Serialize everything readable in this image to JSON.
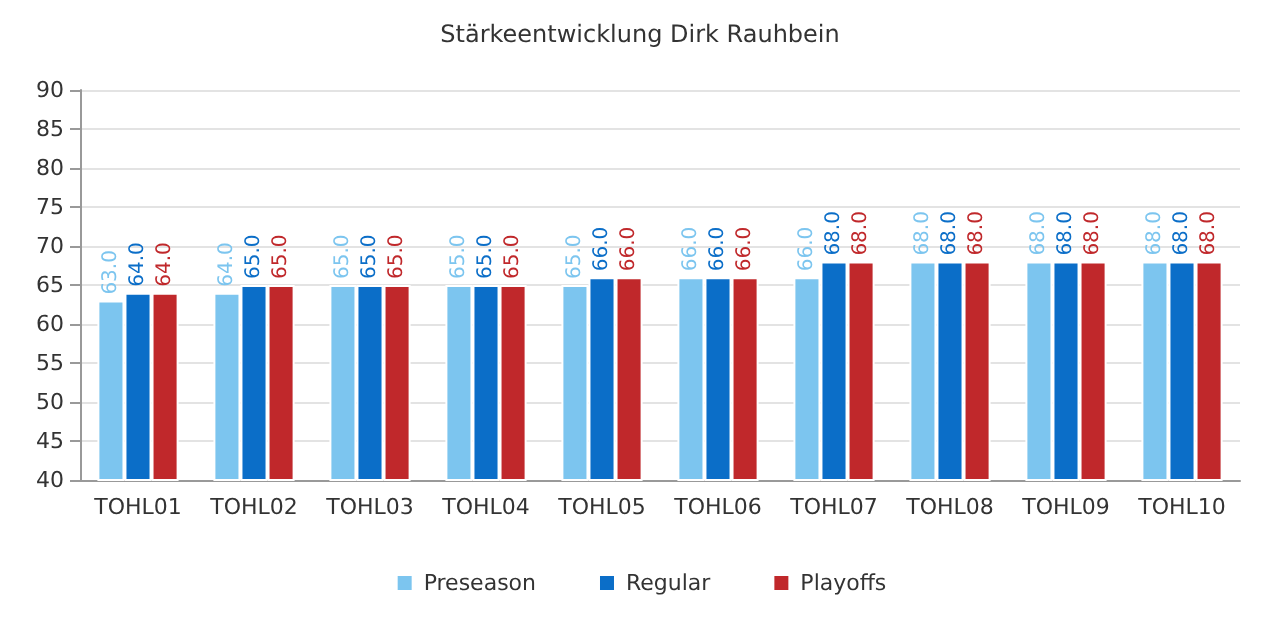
{
  "chart_data": {
    "type": "bar",
    "title": "Stärkeentwicklung Dirk Rauhbein",
    "categories": [
      "TOHL01",
      "TOHL02",
      "TOHL03",
      "TOHL04",
      "TOHL05",
      "TOHL06",
      "TOHL07",
      "TOHL08",
      "TOHL09",
      "TOHL10"
    ],
    "series": [
      {
        "name": "Preseason",
        "color": "#7cc5ef",
        "values": [
          63,
          64,
          65,
          65,
          65,
          66,
          66,
          68,
          68,
          68
        ],
        "value_labels": [
          "63.0",
          "64.0",
          "65.0",
          "65.0",
          "65.0",
          "66.0",
          "66.0",
          "68.0",
          "68.0",
          "68.0"
        ]
      },
      {
        "name": "Regular",
        "color": "#0b6ec8",
        "values": [
          64,
          65,
          65,
          65,
          66,
          66,
          68,
          68,
          68,
          68
        ],
        "value_labels": [
          "64.0",
          "65.0",
          "65.0",
          "65.0",
          "66.0",
          "66.0",
          "68.0",
          "68.0",
          "68.0",
          "68.0"
        ]
      },
      {
        "name": "Playoffs",
        "color": "#c0282b",
        "values": [
          64,
          65,
          65,
          65,
          66,
          66,
          68,
          68,
          68,
          68
        ],
        "value_labels": [
          "64.0",
          "65.0",
          "65.0",
          "65.0",
          "66.0",
          "66.0",
          "68.0",
          "68.0",
          "68.0",
          "68.0"
        ]
      }
    ],
    "ylim": [
      40,
      90
    ],
    "yticks": [
      40,
      45,
      50,
      55,
      60,
      65,
      70,
      75,
      80,
      85,
      90
    ],
    "grid": "y",
    "legend": "bottom"
  }
}
